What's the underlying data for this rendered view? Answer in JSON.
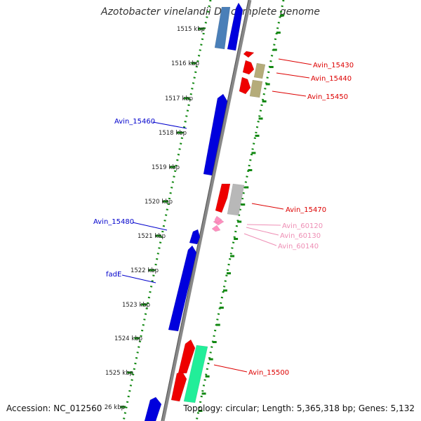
{
  "title": "Azotobacter vinelandii DJ, complete genome",
  "footer": {
    "accession": "Accession: NC_012560",
    "topology": "Topology: circular; Length: 5,365,318 bp; Genes: 5,132"
  },
  "colors": {
    "backbone": "#777777",
    "dots": "#118811",
    "tick": "#118811",
    "red_gene": "#ee0000",
    "blue_gene": "#0000dd",
    "light_blue_gene": "#4a7fb8",
    "khaki_gene": "#b5ac7a",
    "grey_gene": "#b8b8b8",
    "pink_gene": "#ff8fbf",
    "green_gene": "#22ee99",
    "label_red": "#dd0000",
    "label_blue": "#0000cc",
    "label_pink": "#ee8fb5"
  },
  "kbp_labels": [
    "1515 kbp",
    "1516 kbp",
    "1517 kbp",
    "1518 kbp",
    "1519 kbp",
    "1520 kbp",
    "1521 kbp",
    "1522 kbp",
    "1523 kbp",
    "1524 kbp",
    "1525 kbp",
    "26 kbp"
  ],
  "gene_labels": [
    {
      "id": "lbl-avin-15430",
      "text": "Avin_15430",
      "color": "label_red"
    },
    {
      "id": "lbl-avin-15440",
      "text": "Avin_15440",
      "color": "label_red"
    },
    {
      "id": "lbl-avin-15450",
      "text": "Avin_15450",
      "color": "label_red"
    },
    {
      "id": "lbl-avin-15460",
      "text": "Avin_15460",
      "color": "label_blue"
    },
    {
      "id": "lbl-avin-15470",
      "text": "Avin_15470",
      "color": "label_red"
    },
    {
      "id": "lbl-avin-60120",
      "text": "Avin_60120",
      "color": "label_pink"
    },
    {
      "id": "lbl-avin-60130",
      "text": "Avin_60130",
      "color": "label_pink"
    },
    {
      "id": "lbl-avin-60140",
      "text": "Avin_60140",
      "color": "label_pink"
    },
    {
      "id": "lbl-avin-15480",
      "text": "Avin_15480",
      "color": "label_blue"
    },
    {
      "id": "lbl-fade",
      "text": "fadE",
      "color": "label_blue"
    },
    {
      "id": "lbl-avin-15500",
      "text": "Avin_15500",
      "color": "label_red"
    }
  ]
}
